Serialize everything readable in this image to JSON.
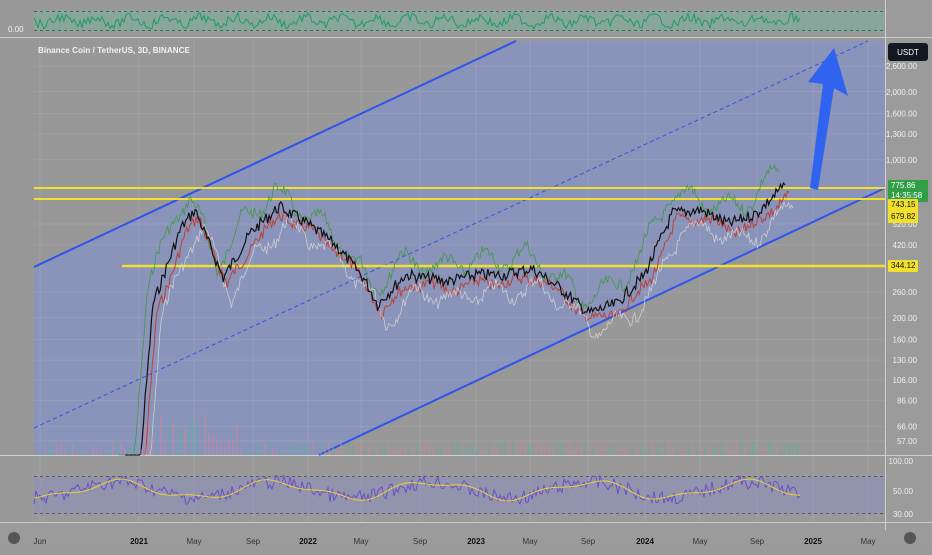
{
  "chart_data": {
    "type": "line",
    "title": "Binance Coin / TetherUS, 3D, BINANCE",
    "quote_currency": "USDT",
    "y_scale": "log",
    "price_axis_ticks": [
      2600,
      2000,
      1600,
      1300,
      1000,
      520,
      420,
      260,
      200,
      160,
      130,
      106,
      86,
      66,
      57
    ],
    "x_axis_ticks": [
      "Jun",
      "2021",
      "May",
      "Sep",
      "2022",
      "May",
      "Sep",
      "2023",
      "May",
      "Sep",
      "2024",
      "May",
      "Sep",
      "2025",
      "May"
    ],
    "horizontal_levels": [
      775.86,
      743.15,
      679.82,
      344.12
    ],
    "price_labels": {
      "last_price": "775.86",
      "countdown": "14:35:58",
      "level_1": "743.15",
      "level_2": "679.82",
      "level_3": "344.12"
    },
    "price_series": {
      "x": [
        "2020-12",
        "2021-01",
        "2021-02",
        "2021-04",
        "2021-05",
        "2021-07",
        "2021-09",
        "2021-11",
        "2022-01",
        "2022-03",
        "2022-05",
        "2022-06",
        "2022-08",
        "2022-11",
        "2023-01",
        "2023-03",
        "2023-05",
        "2023-07",
        "2023-09",
        "2023-11",
        "2024-01",
        "2024-03",
        "2024-05",
        "2024-07",
        "2024-09",
        "2024-11"
      ],
      "y": [
        30,
        40,
        230,
        500,
        600,
        300,
        480,
        620,
        520,
        420,
        300,
        230,
        310,
        290,
        310,
        310,
        330,
        270,
        210,
        230,
        310,
        580,
        600,
        520,
        580,
        775
      ]
    },
    "oscillator_top": {
      "value_label": "0.00"
    },
    "rsi": {
      "ticks": [
        100,
        50,
        30
      ]
    }
  },
  "ui": {
    "currency_button": "USDT"
  }
}
